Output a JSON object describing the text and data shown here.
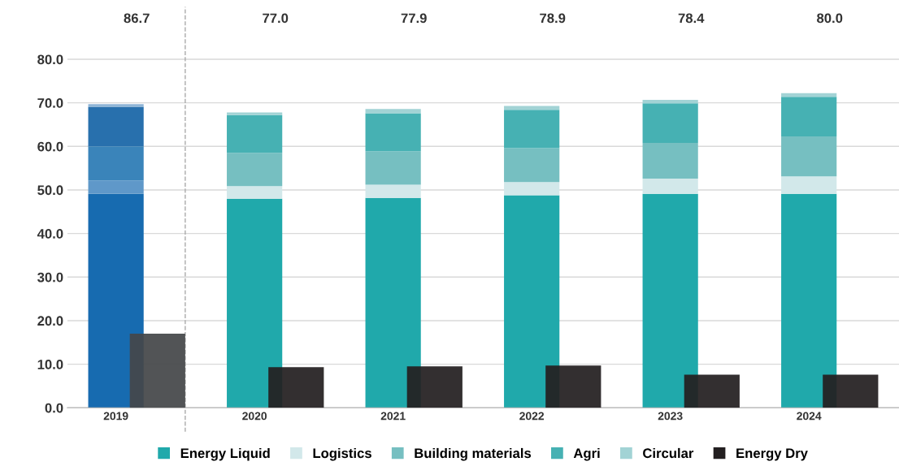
{
  "chart_data": [
    {
      "type": "bar",
      "stacked": true,
      "categories": [
        "2019",
        "2020",
        "2021",
        "2022",
        "2023",
        "2024"
      ],
      "series": [
        {
          "name": "Energy Liquid",
          "color": "#20a9ab",
          "colors": [
            "#176bb0",
            "#20a9ab",
            "#20a9ab",
            "#20a9ab",
            "#20a9ab",
            "#20a9ab"
          ],
          "values": [
            49.1,
            48.0,
            48.2,
            48.8,
            49.1,
            49.1
          ]
        },
        {
          "name": "Logistics",
          "color": "#d2e8ea",
          "colors": [
            "#5f98c9",
            "#d2e8ea",
            "#d2e8ea",
            "#d2e8ea",
            "#d2e8ea",
            "#d2e8ea"
          ],
          "values": [
            3.1,
            2.9,
            3.0,
            3.0,
            3.5,
            4.0
          ]
        },
        {
          "name": "Building materials",
          "color": "#76bfc1",
          "colors": [
            "#3a84ba",
            "#76bfc1",
            "#76bfc1",
            "#76bfc1",
            "#76bfc1",
            "#76bfc1"
          ],
          "values": [
            7.8,
            7.6,
            7.7,
            7.8,
            8.2,
            9.2
          ]
        },
        {
          "name": "Agri",
          "color": "#46b1b3",
          "colors": [
            "#2870ad",
            "#46b1b3",
            "#46b1b3",
            "#46b1b3",
            "#46b1b3",
            "#46b1b3"
          ],
          "values": [
            9.1,
            8.7,
            8.7,
            8.8,
            9.1,
            9.1
          ]
        },
        {
          "name": "Circular",
          "color": "#a2d3d5",
          "colors": [
            "#8fb5d6",
            "#a2d3d5",
            "#a2d3d5",
            "#a2d3d5",
            "#a2d3d5",
            "#a2d3d5"
          ],
          "values": [
            0.6,
            0.6,
            1.0,
            0.9,
            0.8,
            0.8
          ]
        }
      ],
      "annotations": [
        "86.7",
        "77.0",
        "77.9",
        "78.9",
        "78.4",
        "80.0"
      ],
      "ylim": [
        0,
        92
      ],
      "yticks": [
        {
          "value": 0,
          "label": "0.0"
        },
        {
          "value": 10,
          "label": "10.0"
        },
        {
          "value": 20,
          "label": "20.0"
        },
        {
          "value": 30,
          "label": "30.0"
        },
        {
          "value": 40,
          "label": "40.0"
        },
        {
          "value": 50,
          "label": "50.0"
        },
        {
          "value": 60,
          "label": "60.0"
        },
        {
          "value": 70,
          "label": "70.0"
        },
        {
          "value": 80,
          "label": "80.0"
        }
      ],
      "grid": "y",
      "legend": "bottom"
    },
    {
      "type": "bar",
      "categories": [
        "2019",
        "2020",
        "2021",
        "2022",
        "2023",
        "2024"
      ],
      "series": [
        {
          "name": "Energy Dry",
          "color": "#231f20",
          "colors": [
            "#454749",
            "#231f20",
            "#231f20",
            "#231f20",
            "#231f20",
            "#231f20"
          ],
          "values": [
            17.0,
            9.3,
            9.5,
            9.7,
            7.6,
            7.6
          ]
        }
      ],
      "ylim": [
        0,
        92
      ],
      "tick_labels": false
    }
  ]
}
